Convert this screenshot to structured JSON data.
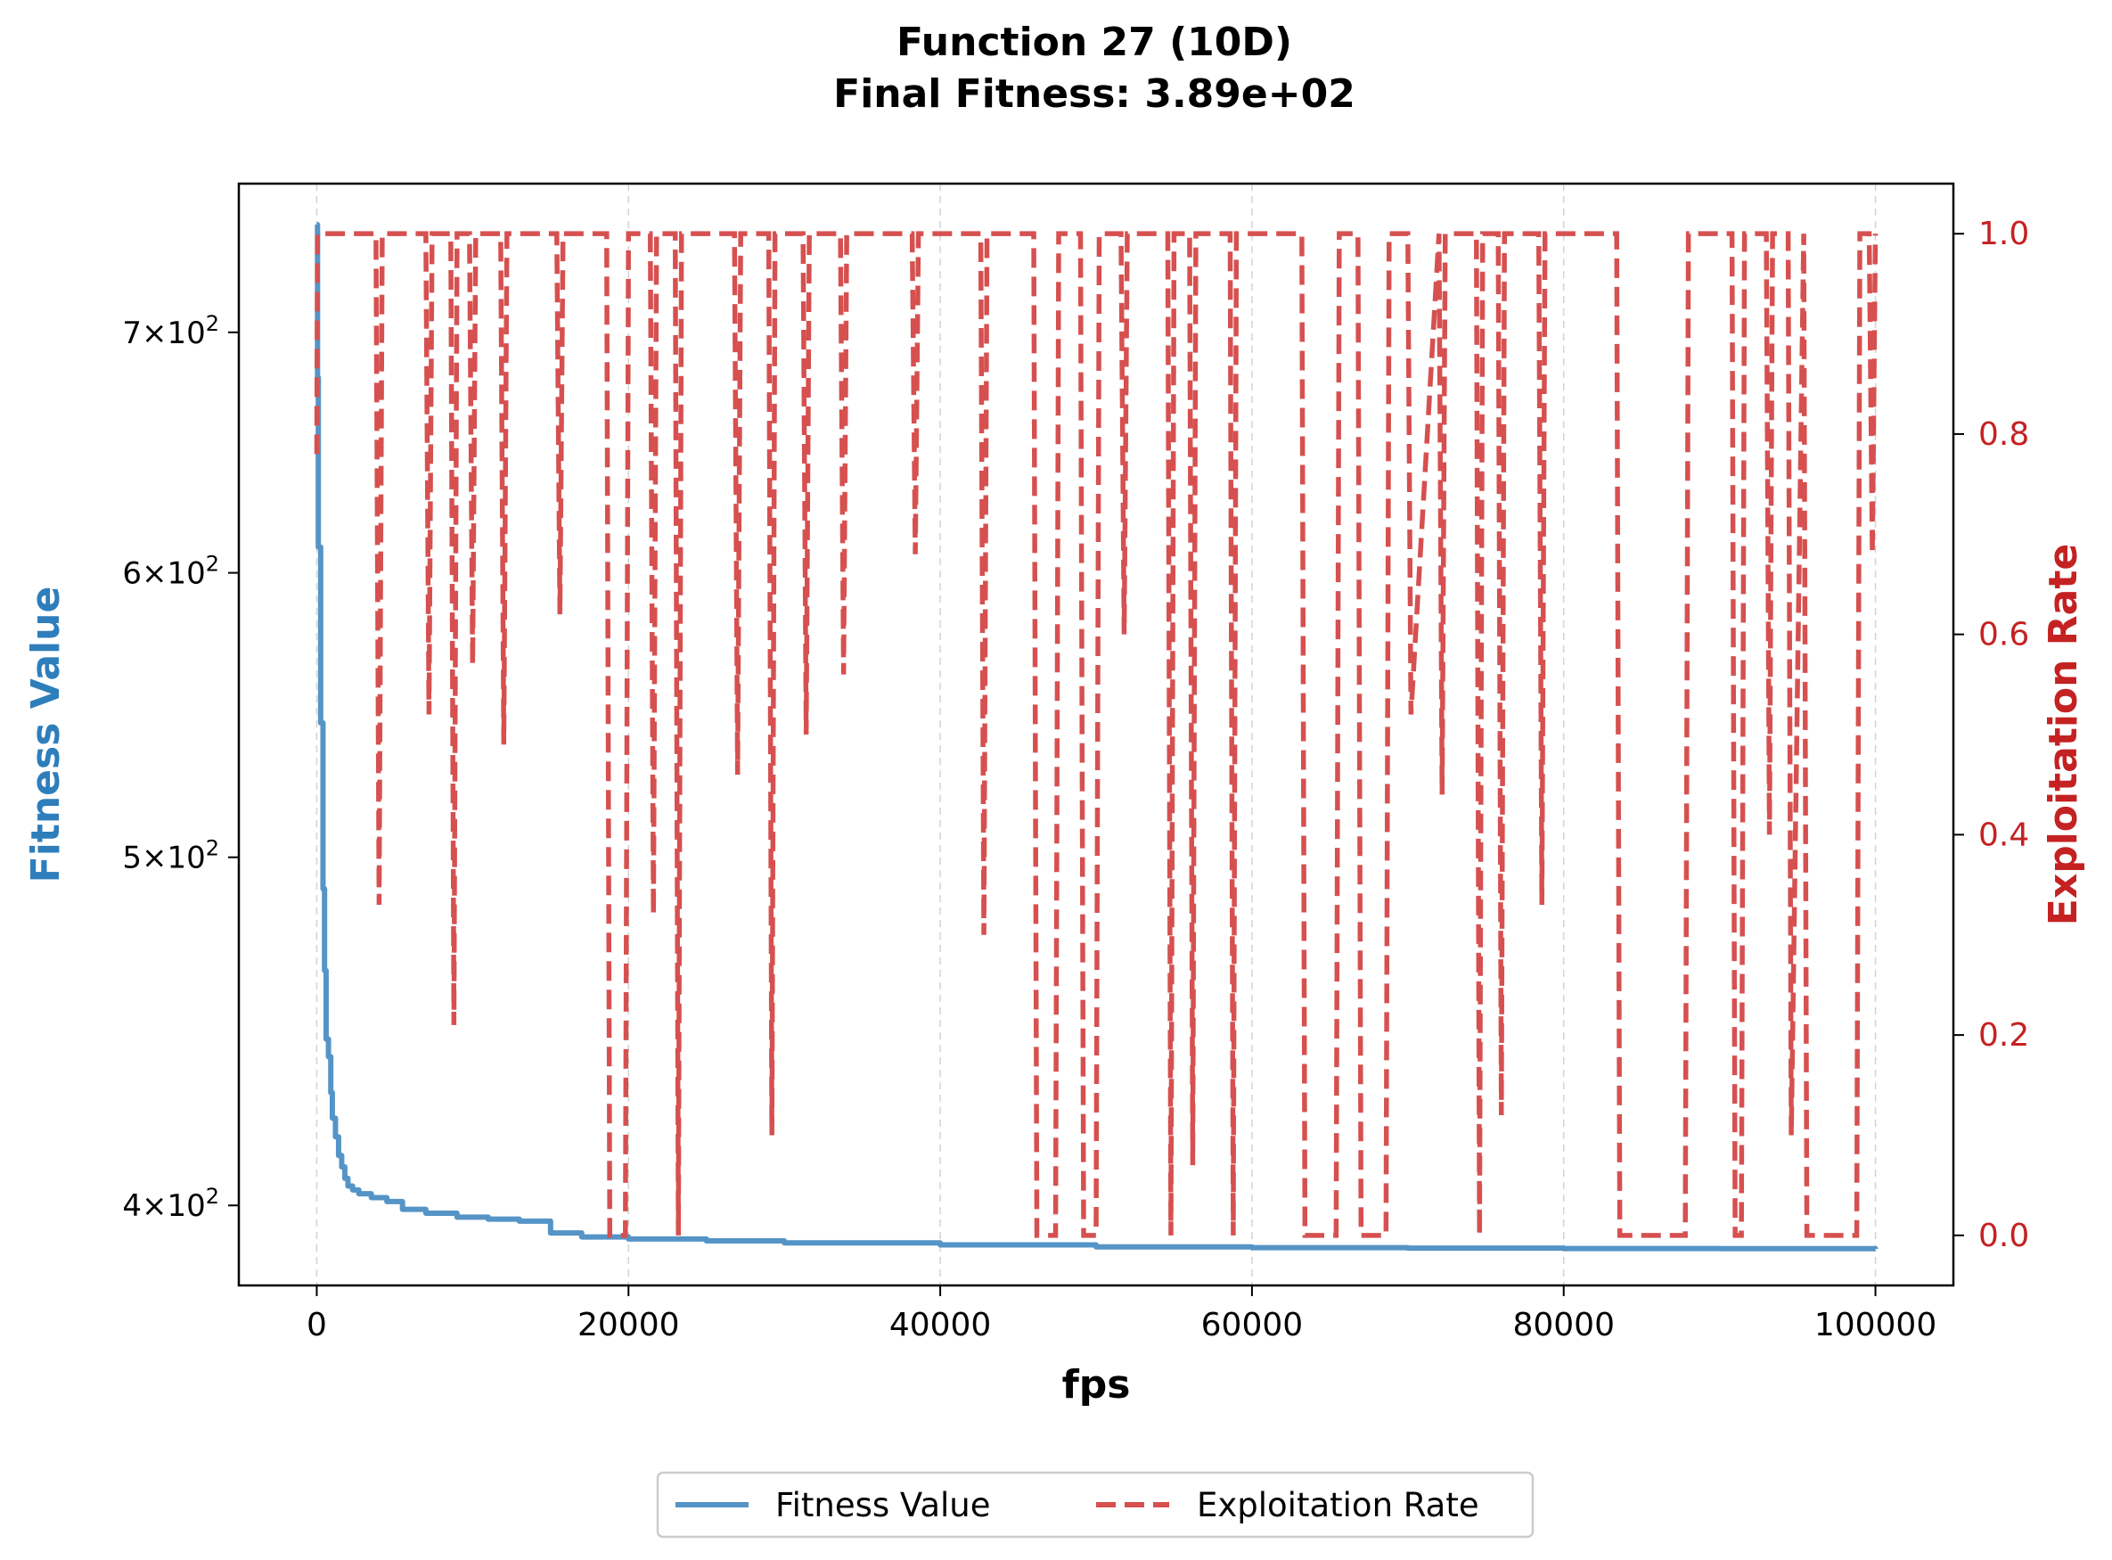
{
  "chart_data": {
    "type": "line",
    "title": "Function 27 (10D)",
    "subtitle": "Final Fitness: 3.89e+02",
    "xlabel": "fps",
    "ylabel_left": "Fitness Value",
    "ylabel_right": "Exploitation Rate",
    "xlim": [
      -5000,
      105000
    ],
    "ylim_left": [
      380,
      770
    ],
    "yscale_left": "log",
    "ylim_right": [
      -0.05,
      1.05
    ],
    "x_ticks": [
      {
        "value": 0,
        "label": "0"
      },
      {
        "value": 20000,
        "label": "20000"
      },
      {
        "value": 40000,
        "label": "40000"
      },
      {
        "value": 60000,
        "label": "60000"
      },
      {
        "value": 80000,
        "label": "80000"
      },
      {
        "value": 100000,
        "label": "100000"
      }
    ],
    "y_ticks_left": [
      {
        "value": 400,
        "base": "4",
        "exp": "2"
      },
      {
        "value": 500,
        "base": "5",
        "exp": "2"
      },
      {
        "value": 600,
        "base": "6",
        "exp": "2"
      },
      {
        "value": 700,
        "base": "7",
        "exp": "2"
      }
    ],
    "y_ticks_right": [
      {
        "value": 0.0,
        "label": "0.0"
      },
      {
        "value": 0.2,
        "label": "0.2"
      },
      {
        "value": 0.4,
        "label": "0.4"
      },
      {
        "value": 0.6,
        "label": "0.6"
      },
      {
        "value": 0.8,
        "label": "0.8"
      },
      {
        "value": 1.0,
        "label": "1.0"
      }
    ],
    "grid": "vertical-dashed",
    "legend_placement": "bottom-center",
    "series": [
      {
        "name": "Fitness Value",
        "axis": "left",
        "color": "#5594c6",
        "style": "solid",
        "x": [
          0,
          50,
          100,
          250,
          400,
          500,
          600,
          750,
          900,
          1000,
          1200,
          1400,
          1600,
          1800,
          2000,
          2300,
          2700,
          3500,
          4500,
          5500,
          7000,
          9000,
          11000,
          13000,
          15000,
          17000,
          20000,
          25000,
          30000,
          40000,
          50000,
          60000,
          70000,
          80000,
          90000,
          100000
        ],
        "values": [
          750,
          680,
          610,
          545,
          490,
          465,
          445,
          440,
          430,
          423,
          418,
          413,
          410,
          407,
          405,
          404,
          403,
          402,
          401,
          399,
          398,
          397,
          396.5,
          396,
          393,
          392,
          391.5,
          391,
          390.5,
          390,
          389.5,
          389.3,
          389.2,
          389.1,
          389.05,
          389
        ]
      },
      {
        "name": "Exploitation Rate",
        "axis": "right",
        "color": "#d65050",
        "style": "dashed",
        "x": [
          0,
          50,
          100,
          3800,
          4000,
          4200,
          7000,
          7200,
          7400,
          8600,
          8800,
          9000,
          9800,
          10000,
          10200,
          11800,
          12000,
          12200,
          15400,
          15600,
          15800,
          18600,
          18800,
          19800,
          20000,
          20200,
          21400,
          21600,
          21800,
          23000,
          23200,
          23400,
          26800,
          27000,
          27200,
          29000,
          29200,
          29400,
          31200,
          31400,
          31600,
          33600,
          33800,
          34000,
          38200,
          38400,
          38600,
          42600,
          42800,
          43000,
          46000,
          46200,
          47400,
          47600,
          49000,
          49200,
          50000,
          50200,
          51600,
          51800,
          52000,
          54600,
          54800,
          55000,
          56000,
          56200,
          56400,
          58600,
          58800,
          59000,
          63200,
          63400,
          65400,
          65600,
          66800,
          67000,
          68600,
          68800,
          69000,
          70000,
          70200,
          72000,
          72200,
          72400,
          74400,
          74600,
          74800,
          75800,
          76000,
          76200,
          78400,
          78600,
          78800,
          83400,
          83600,
          87800,
          88000,
          90800,
          91000,
          91400,
          91600,
          93000,
          93200,
          93400,
          94400,
          94600,
          95400,
          95600,
          98600,
          98800,
          99000,
          99600,
          99800,
          100000
        ],
        "values": [
          0.78,
          1.0,
          1.0,
          1.0,
          0.33,
          1.0,
          1.0,
          0.52,
          1.0,
          1.0,
          0.21,
          1.0,
          1.0,
          0.57,
          1.0,
          1.0,
          0.49,
          1.0,
          1.0,
          0.62,
          1.0,
          1.0,
          0.0,
          0.0,
          1.0,
          1.0,
          1.0,
          0.32,
          1.0,
          1.0,
          0.0,
          1.0,
          1.0,
          0.46,
          1.0,
          1.0,
          0.1,
          1.0,
          1.0,
          0.5,
          1.0,
          1.0,
          0.56,
          1.0,
          1.0,
          0.68,
          1.0,
          1.0,
          0.3,
          1.0,
          1.0,
          0.0,
          0.0,
          1.0,
          1.0,
          0.0,
          0.0,
          1.0,
          1.0,
          0.6,
          1.0,
          1.0,
          0.0,
          1.0,
          1.0,
          0.07,
          1.0,
          1.0,
          0.0,
          1.0,
          1.0,
          0.0,
          0.0,
          1.0,
          1.0,
          0.0,
          0.0,
          1.0,
          1.0,
          1.0,
          0.52,
          1.0,
          0.44,
          1.0,
          1.0,
          0.0,
          1.0,
          1.0,
          0.12,
          1.0,
          1.0,
          0.33,
          1.0,
          1.0,
          0.0,
          0.0,
          1.0,
          1.0,
          0.0,
          0.0,
          1.0,
          1.0,
          0.4,
          1.0,
          1.0,
          0.1,
          1.0,
          0.0,
          0.0,
          0.0,
          1.0,
          1.0,
          0.68,
          1.0
        ]
      }
    ],
    "legend": [
      {
        "label": "Fitness Value",
        "color": "#5594c6",
        "style": "solid"
      },
      {
        "label": "Exploitation Rate",
        "color": "#d65050",
        "style": "dashed"
      }
    ],
    "colors": {
      "left_axis_label": "#2e7ebc",
      "right_axis_label": "#c42222",
      "right_tick_labels": "#c42222"
    }
  }
}
